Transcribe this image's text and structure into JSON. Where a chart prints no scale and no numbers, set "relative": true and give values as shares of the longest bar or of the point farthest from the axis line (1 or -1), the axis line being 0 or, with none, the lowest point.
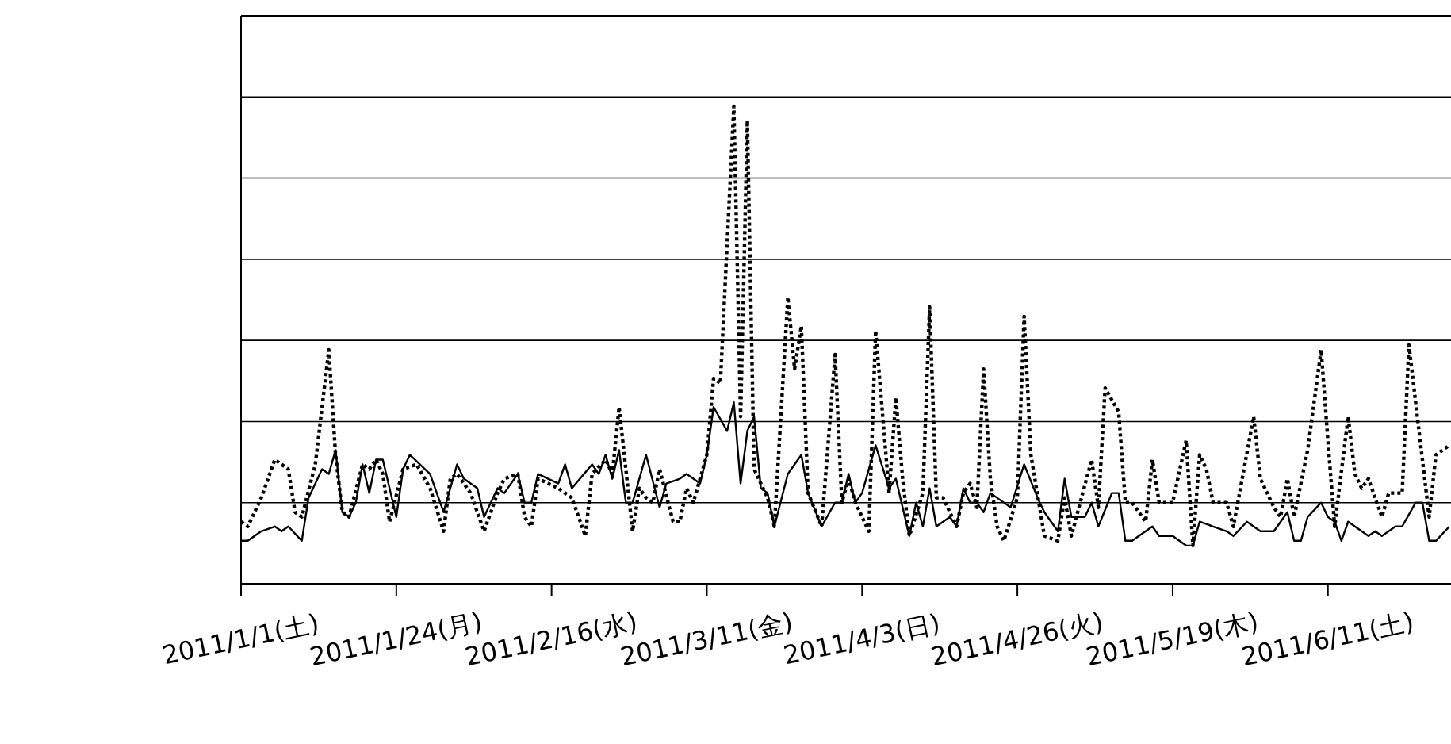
{
  "chart_data": {
    "type": "line",
    "relative": true,
    "grid": "y",
    "marker": "none",
    "xlim": [
      "2011-01-01",
      "2011-06-29"
    ],
    "xticks": [
      {
        "value": "2011-01-01",
        "label": "2011/1/1(土)"
      },
      {
        "value": "2011-01-24",
        "label": "2011/1/24(月)"
      },
      {
        "value": "2011-02-16",
        "label": "2011/2/16(水)"
      },
      {
        "value": "2011-03-11",
        "label": "2011/3/11(金)"
      },
      {
        "value": "2011-04-03",
        "label": "2011/4/3(日)"
      },
      {
        "value": "2011-04-26",
        "label": "2011/4/26(火)"
      },
      {
        "value": "2011-05-19",
        "label": "2011/5/19(木)"
      },
      {
        "value": "2011-06-11",
        "label": "2011/6/11(土)"
      }
    ],
    "series": [
      {
        "color": "#000000",
        "line_style": "solid",
        "x": [
          "2011-01-01",
          "2011-01-02",
          "2011-01-04",
          "2011-01-06",
          "2011-01-07",
          "2011-01-08",
          "2011-01-10",
          "2011-01-11",
          "2011-01-13",
          "2011-01-14",
          "2011-01-15",
          "2011-01-16",
          "2011-01-17",
          "2011-01-18",
          "2011-01-19",
          "2011-01-20",
          "2011-01-21",
          "2011-01-22",
          "2011-01-24",
          "2011-01-25",
          "2011-01-26",
          "2011-01-29",
          "2011-01-31",
          "2011-02-02",
          "2011-02-03",
          "2011-02-05",
          "2011-02-06",
          "2011-02-08",
          "2011-02-09",
          "2011-02-11",
          "2011-02-12",
          "2011-02-13",
          "2011-02-14",
          "2011-02-17",
          "2011-02-18",
          "2011-02-19",
          "2011-02-22",
          "2011-02-23",
          "2011-02-24",
          "2011-02-25",
          "2011-02-26",
          "2011-02-27",
          "2011-02-28",
          "2011-03-02",
          "2011-03-04",
          "2011-03-05",
          "2011-03-07",
          "2011-03-08",
          "2011-03-10",
          "2011-03-11",
          "2011-03-12",
          "2011-03-14",
          "2011-03-15",
          "2011-03-16",
          "2011-03-17",
          "2011-03-18",
          "2011-03-19",
          "2011-03-20",
          "2011-03-21",
          "2011-03-23",
          "2011-03-25",
          "2011-03-26",
          "2011-03-28",
          "2011-03-30",
          "2011-03-31",
          "2011-04-01",
          "2011-04-02",
          "2011-04-03",
          "2011-04-05",
          "2011-04-07",
          "2011-04-08",
          "2011-04-10",
          "2011-04-11",
          "2011-04-12",
          "2011-04-13",
          "2011-04-14",
          "2011-04-16",
          "2011-04-17",
          "2011-04-18",
          "2011-04-19",
          "2011-04-20",
          "2011-04-21",
          "2011-04-22",
          "2011-04-25",
          "2011-04-27",
          "2011-04-29",
          "2011-04-30",
          "2011-05-02",
          "2011-05-03",
          "2011-05-04",
          "2011-05-06",
          "2011-05-07",
          "2011-05-08",
          "2011-05-10",
          "2011-05-11",
          "2011-05-12",
          "2011-05-13",
          "2011-05-14",
          "2011-05-16",
          "2011-05-17",
          "2011-05-19",
          "2011-05-21",
          "2011-05-22",
          "2011-05-23",
          "2011-05-25",
          "2011-05-27",
          "2011-05-28",
          "2011-05-30",
          "2011-06-01",
          "2011-06-03",
          "2011-06-05",
          "2011-06-06",
          "2011-06-07",
          "2011-06-08",
          "2011-06-10",
          "2011-06-11",
          "2011-06-12",
          "2011-06-13",
          "2011-06-14",
          "2011-06-16",
          "2011-06-17",
          "2011-06-18",
          "2011-06-19",
          "2011-06-21",
          "2011-06-22",
          "2011-06-24",
          "2011-06-25",
          "2011-06-26",
          "2011-06-27",
          "2011-06-29"
        ],
        "values": [
          0.09,
          0.09,
          0.11,
          0.12,
          0.11,
          0.12,
          0.09,
          0.18,
          0.24,
          0.23,
          0.28,
          0.15,
          0.14,
          0.17,
          0.25,
          0.19,
          0.26,
          0.26,
          0.14,
          0.24,
          0.27,
          0.23,
          0.15,
          0.25,
          0.22,
          0.2,
          0.14,
          0.2,
          0.19,
          0.23,
          0.17,
          0.17,
          0.23,
          0.21,
          0.25,
          0.2,
          0.25,
          0.23,
          0.27,
          0.22,
          0.28,
          0.17,
          0.17,
          0.27,
          0.16,
          0.21,
          0.22,
          0.23,
          0.21,
          0.27,
          0.37,
          0.32,
          0.38,
          0.21,
          0.32,
          0.35,
          0.2,
          0.19,
          0.12,
          0.23,
          0.27,
          0.19,
          0.12,
          0.17,
          0.17,
          0.23,
          0.17,
          0.19,
          0.29,
          0.2,
          0.22,
          0.1,
          0.17,
          0.12,
          0.2,
          0.12,
          0.14,
          0.12,
          0.2,
          0.17,
          0.17,
          0.15,
          0.19,
          0.16,
          0.25,
          0.18,
          0.15,
          0.11,
          0.22,
          0.14,
          0.14,
          0.17,
          0.12,
          0.19,
          0.19,
          0.09,
          0.09,
          0.1,
          0.12,
          0.1,
          0.1,
          0.08,
          0.08,
          0.13,
          0.12,
          0.11,
          0.1,
          0.13,
          0.11,
          0.11,
          0.15,
          0.09,
          0.09,
          0.14,
          0.17,
          0.14,
          0.13,
          0.09,
          0.13,
          0.11,
          0.1,
          0.11,
          0.1,
          0.12,
          0.12,
          0.17,
          0.17,
          0.09,
          0.09,
          0.12
        ]
      },
      {
        "color": "#000000",
        "line_style": "dotted",
        "x": [
          "2011-01-01",
          "2011-01-02",
          "2011-01-04",
          "2011-01-06",
          "2011-01-08",
          "2011-01-09",
          "2011-01-10",
          "2011-01-12",
          "2011-01-14",
          "2011-01-15",
          "2011-01-16",
          "2011-01-17",
          "2011-01-19",
          "2011-01-20",
          "2011-01-21",
          "2011-01-22",
          "2011-01-23",
          "2011-01-25",
          "2011-01-27",
          "2011-01-29",
          "2011-01-31",
          "2011-02-01",
          "2011-02-02",
          "2011-02-04",
          "2011-02-06",
          "2011-02-08",
          "2011-02-09",
          "2011-02-11",
          "2011-02-12",
          "2011-02-13",
          "2011-02-14",
          "2011-02-17",
          "2011-02-19",
          "2011-02-21",
          "2011-02-22",
          "2011-02-24",
          "2011-02-25",
          "2011-02-26",
          "2011-02-27",
          "2011-02-28",
          "2011-03-01",
          "2011-03-02",
          "2011-03-03",
          "2011-03-04",
          "2011-03-06",
          "2011-03-07",
          "2011-03-08",
          "2011-03-09",
          "2011-03-11",
          "2011-03-12",
          "2011-03-13",
          "2011-03-15",
          "2011-03-16",
          "2011-03-17",
          "2011-03-18",
          "2011-03-20",
          "2011-03-21",
          "2011-03-23",
          "2011-03-24",
          "2011-03-25",
          "2011-03-26",
          "2011-03-28",
          "2011-03-30",
          "2011-03-31",
          "2011-04-01",
          "2011-04-02",
          "2011-04-04",
          "2011-04-05",
          "2011-04-07",
          "2011-04-08",
          "2011-04-09",
          "2011-04-10",
          "2011-04-12",
          "2011-04-13",
          "2011-04-14",
          "2011-04-15",
          "2011-04-17",
          "2011-04-18",
          "2011-04-19",
          "2011-04-20",
          "2011-04-21",
          "2011-04-22",
          "2011-04-23",
          "2011-04-24",
          "2011-04-26",
          "2011-04-27",
          "2011-04-28",
          "2011-04-30",
          "2011-05-02",
          "2011-05-03",
          "2011-05-04",
          "2011-05-07",
          "2011-05-08",
          "2011-05-09",
          "2011-05-11",
          "2011-05-12",
          "2011-05-13",
          "2011-05-15",
          "2011-05-16",
          "2011-05-17",
          "2011-05-19",
          "2011-05-21",
          "2011-05-22",
          "2011-05-23",
          "2011-05-24",
          "2011-05-25",
          "2011-05-26",
          "2011-05-27",
          "2011-05-28",
          "2011-05-31",
          "2011-06-01",
          "2011-06-03",
          "2011-06-04",
          "2011-06-05",
          "2011-06-06",
          "2011-06-08",
          "2011-06-10",
          "2011-06-11",
          "2011-06-12",
          "2011-06-14",
          "2011-06-15",
          "2011-06-16",
          "2011-06-17",
          "2011-06-19",
          "2011-06-20",
          "2011-06-22",
          "2011-06-23",
          "2011-06-24",
          "2011-06-26",
          "2011-06-27",
          "2011-06-29"
        ],
        "values": [
          0.13,
          0.12,
          0.18,
          0.26,
          0.24,
          0.15,
          0.14,
          0.25,
          0.49,
          0.27,
          0.15,
          0.14,
          0.25,
          0.24,
          0.26,
          0.23,
          0.13,
          0.24,
          0.25,
          0.2,
          0.11,
          0.22,
          0.23,
          0.19,
          0.11,
          0.19,
          0.22,
          0.23,
          0.14,
          0.12,
          0.22,
          0.2,
          0.18,
          0.1,
          0.23,
          0.26,
          0.23,
          0.37,
          0.24,
          0.11,
          0.2,
          0.18,
          0.17,
          0.24,
          0.13,
          0.13,
          0.2,
          0.17,
          0.27,
          0.43,
          0.42,
          1.0,
          0.35,
          0.97,
          0.24,
          0.18,
          0.12,
          0.6,
          0.45,
          0.54,
          0.19,
          0.12,
          0.48,
          0.17,
          0.22,
          0.17,
          0.11,
          0.53,
          0.19,
          0.39,
          0.22,
          0.1,
          0.19,
          0.58,
          0.18,
          0.18,
          0.12,
          0.19,
          0.21,
          0.16,
          0.45,
          0.22,
          0.12,
          0.09,
          0.18,
          0.56,
          0.27,
          0.1,
          0.09,
          0.18,
          0.1,
          0.26,
          0.16,
          0.41,
          0.36,
          0.17,
          0.17,
          0.13,
          0.26,
          0.17,
          0.17,
          0.3,
          0.08,
          0.27,
          0.24,
          0.17,
          0.17,
          0.17,
          0.12,
          0.35,
          0.22,
          0.16,
          0.14,
          0.22,
          0.14,
          0.28,
          0.49,
          0.3,
          0.12,
          0.35,
          0.23,
          0.2,
          0.22,
          0.14,
          0.19,
          0.19,
          0.5,
          0.38,
          0.14,
          0.27,
          0.29
        ]
      }
    ]
  }
}
